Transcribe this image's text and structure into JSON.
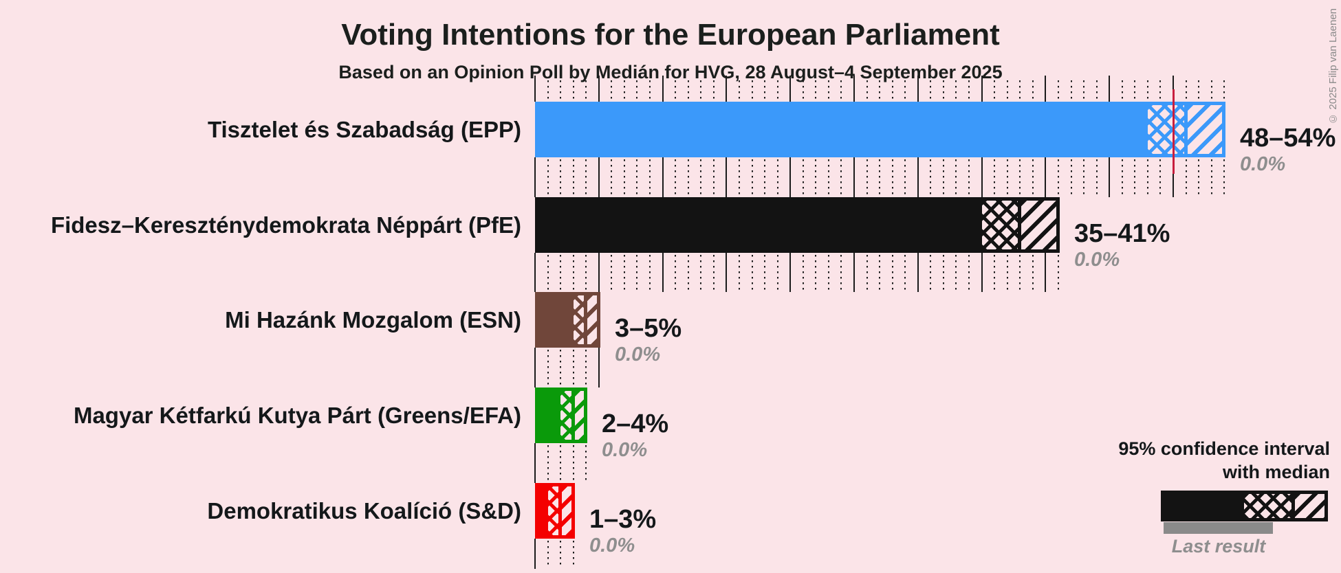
{
  "title": "Voting Intentions for the European Parliament",
  "subtitle": "Based on an Opinion Poll by Medián for HVG, 28 August–4 September 2025",
  "copyright": "© 2025 Filip van Laenen",
  "legend": {
    "ci_line1": "95% confidence interval",
    "ci_line2": "with median",
    "last_result": "Last result",
    "sample_color": "#131313",
    "last_result_bar_color": "#8a8a8a"
  },
  "colors": {
    "background": "#fbe4e8",
    "text": "#14181a",
    "muted_text": "#8e8e8e",
    "gridline": "#1b1b1b",
    "majority_line": "#c81e3e"
  },
  "chart_data": {
    "type": "bar",
    "orientation": "horizontal",
    "unit": "%",
    "title": "Voting Intentions for the European Parliament",
    "subtitle": "Based on an Opinion Poll by Medián for HVG, 28 August–4 September 2025",
    "x_axis": {
      "min": 0,
      "max": 54,
      "major_grid_step": 5,
      "minor_grid_step": 1,
      "labels_shown": false
    },
    "majority_line_pct": 50,
    "categories": [
      "Tisztelet és Szabadság (EPP)",
      "Fidesz–Kereszténydemokrata Néppárt (PfE)",
      "Mi Hazánk Mozgalom (ESN)",
      "Magyar Kétfarkú Kutya Párt (Greens/EFA)",
      "Demokratikus Koalíció (S&D)"
    ],
    "parties": [
      {
        "label": "Tisztelet és Szabadság (EPP)",
        "ci_low": 48,
        "median": 51,
        "ci_high": 54,
        "range_label": "48–54%",
        "last_result": 0.0,
        "last_result_label": "0.0%",
        "color": "#3b99fa"
      },
      {
        "label": "Fidesz–Kereszténydemokrata Néppárt (PfE)",
        "ci_low": 35,
        "median": 38,
        "ci_high": 41,
        "range_label": "35–41%",
        "last_result": 0.0,
        "last_result_label": "0.0%",
        "color": "#131313"
      },
      {
        "label": "Mi Hazánk Mozgalom (ESN)",
        "ci_low": 3,
        "median": 4,
        "ci_high": 5,
        "range_label": "3–5%",
        "last_result": 0.0,
        "last_result_label": "0.0%",
        "color": "#70463a"
      },
      {
        "label": "Magyar Kétfarkú Kutya Párt (Greens/EFA)",
        "ci_low": 2,
        "median": 3,
        "ci_high": 4,
        "range_label": "2–4%",
        "last_result": 0.0,
        "last_result_label": "0.0%",
        "color": "#0a9a0a"
      },
      {
        "label": "Demokratikus Koalíció (S&D)",
        "ci_low": 1,
        "median": 2,
        "ci_high": 3,
        "range_label": "1–3%",
        "last_result": 0.0,
        "last_result_label": "0.0%",
        "color": "#f40000"
      }
    ]
  }
}
